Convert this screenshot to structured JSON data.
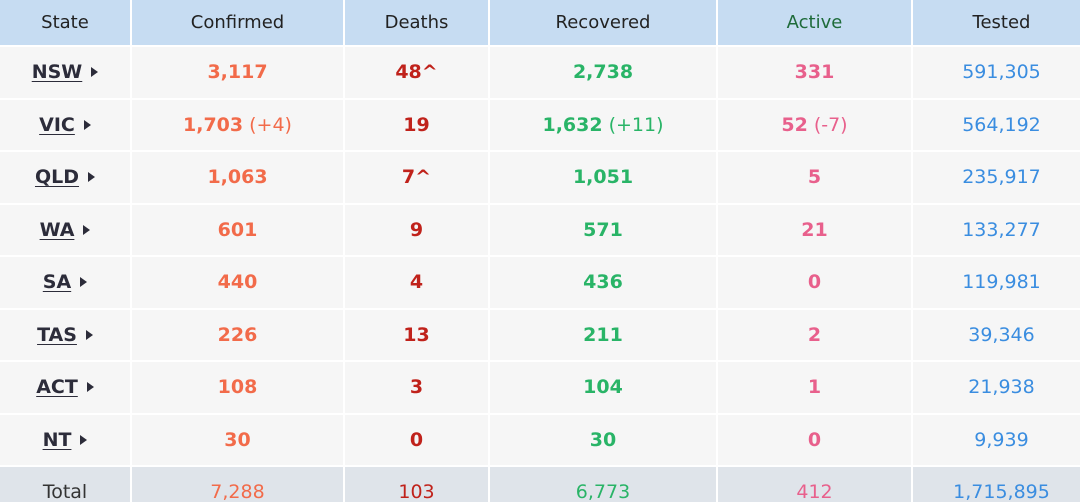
{
  "headers": {
    "state": "State",
    "confirmed": "Confirmed",
    "deaths": "Deaths",
    "recovered": "Recovered",
    "active": "Active",
    "tested": "Tested"
  },
  "rows": [
    {
      "state": "NSW",
      "confirmed": "3,117",
      "confirmed_delta": "",
      "deaths": "48^",
      "recovered": "2,738",
      "recovered_delta": "",
      "active": "331",
      "active_delta": "",
      "tested": "591,305"
    },
    {
      "state": "VIC",
      "confirmed": "1,703",
      "confirmed_delta": "(+4)",
      "deaths": "19",
      "recovered": "1,632",
      "recovered_delta": "(+11)",
      "active": "52",
      "active_delta": "(-7)",
      "tested": "564,192"
    },
    {
      "state": "QLD",
      "confirmed": "1,063",
      "confirmed_delta": "",
      "deaths": "7^",
      "recovered": "1,051",
      "recovered_delta": "",
      "active": "5",
      "active_delta": "",
      "tested": "235,917"
    },
    {
      "state": "WA",
      "confirmed": "601",
      "confirmed_delta": "",
      "deaths": "9",
      "recovered": "571",
      "recovered_delta": "",
      "active": "21",
      "active_delta": "",
      "tested": "133,277"
    },
    {
      "state": "SA",
      "confirmed": "440",
      "confirmed_delta": "",
      "deaths": "4",
      "recovered": "436",
      "recovered_delta": "",
      "active": "0",
      "active_delta": "",
      "tested": "119,981"
    },
    {
      "state": "TAS",
      "confirmed": "226",
      "confirmed_delta": "",
      "deaths": "13",
      "recovered": "211",
      "recovered_delta": "",
      "active": "2",
      "active_delta": "",
      "tested": "39,346"
    },
    {
      "state": "ACT",
      "confirmed": "108",
      "confirmed_delta": "",
      "deaths": "3",
      "recovered": "104",
      "recovered_delta": "",
      "active": "1",
      "active_delta": "",
      "tested": "21,938"
    },
    {
      "state": "NT",
      "confirmed": "30",
      "confirmed_delta": "",
      "deaths": "0",
      "recovered": "30",
      "recovered_delta": "",
      "active": "0",
      "active_delta": "",
      "tested": "9,939"
    }
  ],
  "total": {
    "label": "Total",
    "confirmed": "7,288",
    "deaths": "103",
    "recovered": "6,773",
    "active": "412",
    "tested": "1,715,895"
  },
  "colors": {
    "header_bg": "#c6dcf2",
    "row_bg": "#f6f6f6",
    "total_bg": "#dfe4ea",
    "confirmed": "#f26b4a",
    "deaths": "#c0221b",
    "recovered": "#29b467",
    "active": "#e8608c",
    "tested": "#3a8de0"
  },
  "icons": {
    "expand": "caret-right-icon"
  }
}
